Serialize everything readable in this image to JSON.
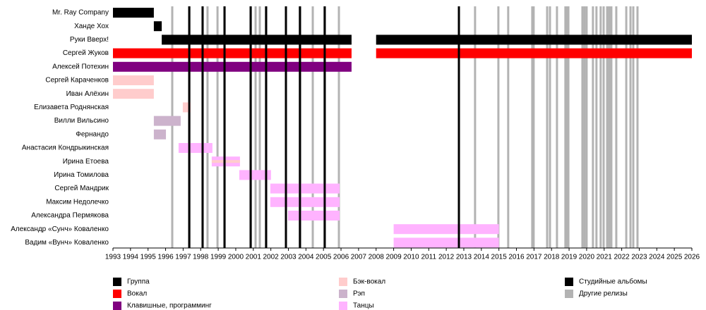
{
  "chart_data": {
    "type": "timeline",
    "xlim": [
      1993,
      2026
    ],
    "xticks": [
      1993,
      1994,
      1995,
      1996,
      1997,
      1998,
      1999,
      2000,
      2001,
      2002,
      2003,
      2004,
      2005,
      2006,
      2007,
      2008,
      2009,
      2010,
      2011,
      2012,
      2013,
      2014,
      2015,
      2016,
      2017,
      2018,
      2019,
      2020,
      2021,
      2022,
      2023,
      2024,
      2025,
      2026
    ],
    "roles": [
      {
        "name": "Группа",
        "color": "#000000"
      },
      {
        "name": "Вокал",
        "color": "#ff0000"
      },
      {
        "name": "Клавишные, программинг",
        "color": "#800080"
      },
      {
        "name": "Бэк-вокал",
        "color": "#ffcccc"
      },
      {
        "name": "Рэп",
        "color": "#ccb3cc"
      },
      {
        "name": "Танцы",
        "color": "#ffb3ff"
      }
    ],
    "release_types": [
      {
        "name": "Студийные альбомы",
        "color": "#000000",
        "years": [
          1997.35,
          1998.11,
          1999.36,
          2000.85,
          2001.73,
          2002.86,
          2003.66,
          2005.07,
          2012.72
        ]
      },
      {
        "name": "Другие релизы",
        "color": "#b3b3b3",
        "years": [
          1996.38,
          1998.39,
          1998.96,
          2001.13,
          2001.37,
          2004.39,
          2005.88,
          2013.64,
          2014.97,
          2015.53,
          2016.9,
          2016.98,
          2017.75,
          2017.91,
          2018.31,
          2018.79,
          2018.87,
          2018.96,
          2019.76,
          2019.88,
          2020.0,
          2020.36,
          2020.56,
          2020.8,
          2020.97,
          2021.17,
          2021.29,
          2021.41,
          2021.69,
          2022.26,
          2022.5,
          2022.66,
          2022.9
        ]
      }
    ],
    "members": [
      {
        "name": "Mr. Ray Company",
        "bars": [
          {
            "start": 1993,
            "end": 1995.33,
            "color": "#000000"
          }
        ]
      },
      {
        "name": "Ханде Хох",
        "bars": [
          {
            "start": 1995.33,
            "end": 1995.78,
            "color": "#000000"
          }
        ]
      },
      {
        "name": "Руки Вверх!",
        "bars": [
          {
            "start": 1995.78,
            "end": 2006.6,
            "color": "#000000"
          },
          {
            "start": 2008.0,
            "end": 2026,
            "color": "#000000"
          }
        ]
      },
      {
        "name": "Сергей Жуков",
        "bars": [
          {
            "start": 1993,
            "end": 2006.6,
            "color": "#ff0000"
          },
          {
            "start": 2008.0,
            "end": 2026,
            "color": "#ff0000"
          }
        ]
      },
      {
        "name": "Алексей Потехин",
        "bars": [
          {
            "start": 1993,
            "end": 2006.6,
            "color": "#800080"
          }
        ]
      },
      {
        "name": "Сергей Караченков",
        "bars": [
          {
            "start": 1993,
            "end": 1995.33,
            "color": "#ffcccc"
          }
        ]
      },
      {
        "name": "Иван Алёхин",
        "bars": [
          {
            "start": 1993,
            "end": 1995.33,
            "color": "#ffcccc"
          }
        ]
      },
      {
        "name": "Елизавета Роднянская",
        "bars": [
          {
            "start": 1996.98,
            "end": 1997.43,
            "color": "#ffcccc"
          }
        ]
      },
      {
        "name": "Вилли Вильсино",
        "bars": [
          {
            "start": 1995.33,
            "end": 1996.86,
            "color": "#ccb3cc"
          }
        ]
      },
      {
        "name": "Фернандо",
        "bars": [
          {
            "start": 1995.33,
            "end": 1996.02,
            "color": "#ccb3cc"
          }
        ]
      },
      {
        "name": "Анастасия Кондрыкинская",
        "bars": [
          {
            "start": 1996.74,
            "end": 1998.67,
            "color": "#ffb3ff"
          }
        ]
      },
      {
        "name": "Ирина Етоева",
        "bars": [
          {
            "start": 1998.63,
            "end": 2000.24,
            "color": "#ffb3ff"
          },
          {
            "start": 1998.63,
            "end": 2000.24,
            "color": "#ffcccc"
          }
        ]
      },
      {
        "name": "Ирина Томилова",
        "bars": [
          {
            "start": 2000.2,
            "end": 2002.01,
            "color": "#ffb3ff"
          }
        ]
      },
      {
        "name": "Сергей Мандрик",
        "bars": [
          {
            "start": 2001.97,
            "end": 2005.92,
            "color": "#ffb3ff"
          }
        ]
      },
      {
        "name": "Максим Недолечко",
        "bars": [
          {
            "start": 2001.97,
            "end": 2005.92,
            "color": "#ffb3ff"
          }
        ]
      },
      {
        "name": "Александра Пермякова",
        "bars": [
          {
            "start": 2002.98,
            "end": 2005.92,
            "color": "#ffb3ff"
          }
        ]
      },
      {
        "name": "Александр «Сунч» Коваленко",
        "bars": [
          {
            "start": 2009.0,
            "end": 2015.0,
            "color": "#ffb3ff"
          }
        ]
      },
      {
        "name": "Вадим «Вунч» Коваленко",
        "bars": [
          {
            "start": 2009.0,
            "end": 2015.0,
            "color": "#ffb3ff"
          }
        ]
      }
    ]
  }
}
